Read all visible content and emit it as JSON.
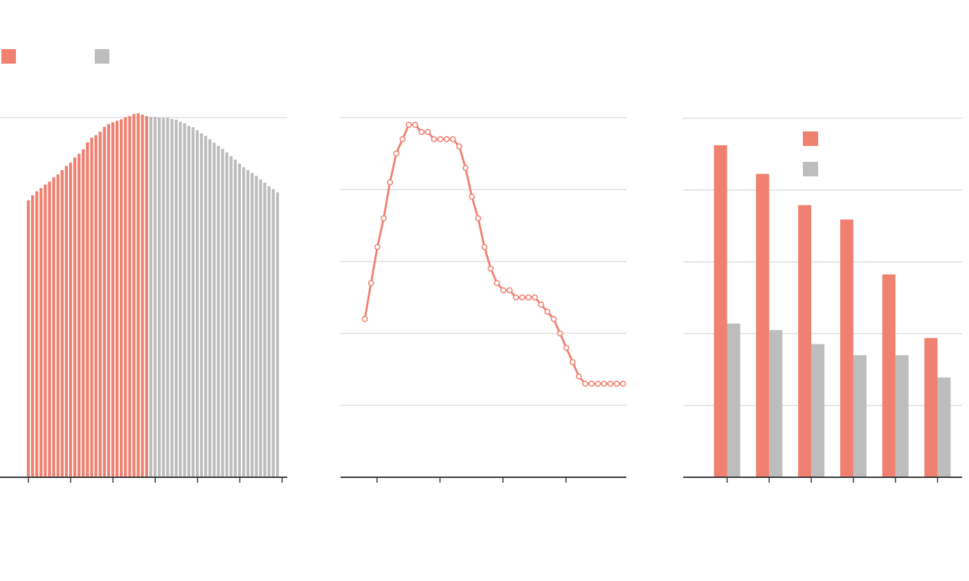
{
  "colors": {
    "red": "#f08070",
    "gray": "#bdbdbd",
    "grid": "#dddddd",
    "axis": "#333333"
  },
  "chart_data": [
    {
      "type": "bar",
      "legend": {
        "placement": "top-left",
        "entries": [
          {
            "color": "#f08070"
          },
          {
            "color": "#bdbdbd"
          }
        ]
      },
      "ylim": [
        0,
        100
      ],
      "grid": true,
      "gridlines": [
        100
      ],
      "x_ticks": 7,
      "series": [
        {
          "color": "#f08070",
          "values": [
            77,
            78.4,
            79.5,
            80.4,
            81.4,
            82.2,
            83.4,
            84.2,
            85.4,
            86.6,
            87.5,
            88.9,
            89.9,
            91.2,
            93.1,
            94.4,
            95.1,
            96.1,
            97.4,
            98.2,
            98.7,
            99.1,
            99.5,
            100.1,
            100.4,
            101,
            101.2,
            100.8,
            100.4
          ]
        },
        {
          "color": "#bdbdbd",
          "values": [
            100.2,
            100.2,
            100,
            99.9,
            99.9,
            99.6,
            99.4,
            98.8,
            98.4,
            97.7,
            97.3,
            96.5,
            95.6,
            94.9,
            94,
            93,
            92.1,
            91.3,
            90.3,
            89.3,
            88.3,
            87.2,
            86.2,
            85.4,
            84.6,
            83.8,
            82.8,
            81.9,
            80.9,
            80.1,
            79.2
          ]
        }
      ]
    },
    {
      "type": "line",
      "ylim": [
        0,
        100
      ],
      "grid": true,
      "gridlines": [
        20,
        40,
        60,
        80,
        100
      ],
      "x_range": [
        0,
        44
      ],
      "x_ticks": [
        2,
        12,
        22,
        32
      ],
      "series": [
        {
          "color": "#f08070",
          "points": [
            [
              0,
              44
            ],
            [
              1,
              54
            ],
            [
              2,
              64
            ],
            [
              3,
              72
            ],
            [
              4,
              82
            ],
            [
              5,
              90
            ],
            [
              6,
              94
            ],
            [
              7,
              98
            ],
            [
              8,
              98
            ],
            [
              9,
              96
            ],
            [
              10,
              96
            ],
            [
              11,
              94
            ],
            [
              12,
              94
            ],
            [
              13,
              94
            ],
            [
              14,
              94
            ],
            [
              15,
              92
            ],
            [
              16,
              86
            ],
            [
              17,
              78
            ],
            [
              18,
              72
            ],
            [
              19,
              64
            ],
            [
              20,
              58
            ],
            [
              21,
              54
            ],
            [
              22,
              52
            ],
            [
              23,
              52
            ],
            [
              24,
              50
            ],
            [
              25,
              50
            ],
            [
              26,
              50
            ],
            [
              27,
              50
            ],
            [
              28,
              48
            ],
            [
              29,
              46
            ],
            [
              30,
              44
            ],
            [
              31,
              40
            ],
            [
              32,
              36
            ],
            [
              33,
              32
            ],
            [
              34,
              28
            ],
            [
              35,
              26
            ],
            [
              36,
              26
            ],
            [
              37,
              26
            ],
            [
              38,
              26
            ],
            [
              39,
              26
            ],
            [
              40,
              26
            ],
            [
              41,
              26
            ]
          ]
        }
      ]
    },
    {
      "type": "bar",
      "legend": {
        "placement": "top-center",
        "entries": [
          {
            "color": "#f08070"
          },
          {
            "color": "#bdbdbd"
          }
        ]
      },
      "ylim": [
        0,
        100
      ],
      "grid": true,
      "gridlines": [
        20,
        40,
        60,
        80,
        100
      ],
      "categories": [
        "",
        "",
        "",
        "",
        "",
        ""
      ],
      "series": [
        {
          "color": "#f08070",
          "values": [
            92.5,
            84.5,
            75.8,
            71.8,
            56.5,
            38.8
          ]
        },
        {
          "color": "#bdbdbd",
          "values": [
            42.8,
            41,
            37.1,
            34,
            34,
            27.8
          ]
        }
      ]
    }
  ]
}
